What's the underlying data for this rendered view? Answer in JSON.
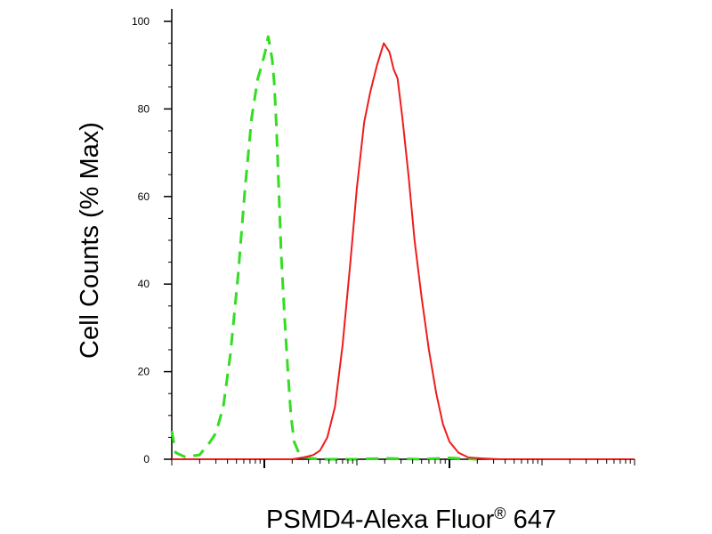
{
  "chart_data": {
    "type": "line",
    "title": "",
    "xlabel": "PSMD4-Alexa Fluor",
    "xlabel_superscript": "®",
    "xlabel_suffix": "647",
    "ylabel": "Cell Counts (% Max)",
    "x_scale": "log",
    "xlim": [
      1,
      100000
    ],
    "ylim": [
      0,
      105
    ],
    "y_ticks": [
      0,
      20,
      40,
      60,
      80,
      100
    ],
    "y_tick_labels": [
      "0",
      "20",
      "40",
      "60",
      "80",
      "100"
    ],
    "x_ticks_major": [
      10,
      1000
    ],
    "grid": false,
    "series": [
      {
        "style": "dashed",
        "color": "#33dd22",
        "x": [
          1.0,
          1.1,
          1.4,
          2.0,
          2.6,
          3.0,
          3.6,
          4.3,
          5.2,
          6.2,
          7.3,
          8.5,
          9.4,
          10.2,
          11.0,
          11.6,
          12.2,
          12.8,
          13.5,
          14.3,
          15.2,
          16.5,
          18.0,
          19.4,
          21.0,
          23.5,
          27.0,
          32.0,
          40.0,
          60.0,
          100.0,
          200.0,
          500.0,
          1000.0,
          2000.0
        ],
        "y": [
          6.5,
          1.5,
          0.5,
          1.0,
          4.0,
          6.0,
          12.0,
          24.0,
          42.0,
          62.0,
          78.0,
          87.0,
          90.0,
          93.0,
          96.5,
          94.0,
          91.0,
          86.0,
          76.0,
          62.0,
          47.0,
          33.0,
          20.0,
          10.0,
          4.0,
          1.5,
          0.5,
          0.2,
          0.0,
          0.0,
          0.0,
          0.2,
          0.0,
          0.3,
          0.0
        ]
      },
      {
        "style": "solid",
        "color": "#ee1c1c",
        "x": [
          1.0,
          10.0,
          20.0,
          28.0,
          34.0,
          40.0,
          48.0,
          58.0,
          70.0,
          85.0,
          100.0,
          120.0,
          140.0,
          165.0,
          195.0,
          225.0,
          250.0,
          275.0,
          310.0,
          360.0,
          420.0,
          500.0,
          600.0,
          720.0,
          850.0,
          1000.0,
          1250.0,
          1600.0,
          2200.0,
          3500.0,
          8000.0,
          30000.0,
          100000.0
        ],
        "y": [
          0.0,
          0.0,
          0.0,
          0.5,
          1.0,
          2.0,
          5.0,
          12.0,
          26.0,
          45.0,
          62.0,
          77.0,
          84.0,
          90.0,
          95.0,
          93.0,
          89.0,
          87.0,
          78.0,
          65.0,
          50.0,
          37.0,
          25.0,
          15.0,
          8.0,
          4.0,
          1.5,
          0.4,
          0.2,
          0.0,
          0.0,
          0.0,
          0.0
        ]
      }
    ]
  }
}
